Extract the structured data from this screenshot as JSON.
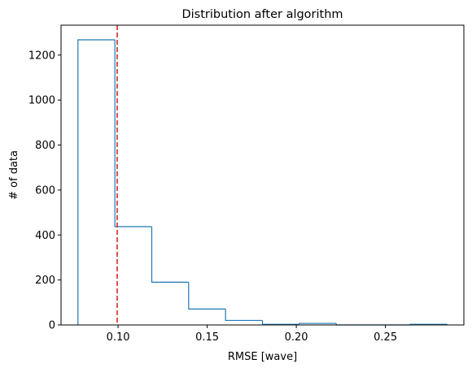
{
  "chart_data": {
    "type": "bar",
    "histtype": "step",
    "title": "Distribution after algorithm",
    "xlabel": "RMSE [wave]",
    "ylabel": "# of data",
    "xlim": [
      0.068,
      0.294
    ],
    "ylim": [
      0,
      1333
    ],
    "xticks": [
      0.1,
      0.15,
      0.2,
      0.25
    ],
    "xtick_labels": [
      "0.10",
      "0.15",
      "0.20",
      "0.25"
    ],
    "yticks": [
      0,
      200,
      400,
      600,
      800,
      1000,
      1200
    ],
    "ytick_labels": [
      "0",
      "200",
      "400",
      "600",
      "800",
      "1000",
      "1200"
    ],
    "bin_edges": [
      0.0775,
      0.0982,
      0.1189,
      0.1396,
      0.1603,
      0.181,
      0.2017,
      0.2224,
      0.2431,
      0.2638,
      0.2845
    ],
    "counts": [
      1268,
      437,
      190,
      71,
      20,
      3,
      7,
      0,
      0,
      3
    ],
    "reference_line": {
      "x": 0.0995,
      "style": "dashed"
    },
    "grid": false,
    "colors": {
      "histogram": "#1f77b4",
      "reference_line": "#d62728"
    }
  }
}
